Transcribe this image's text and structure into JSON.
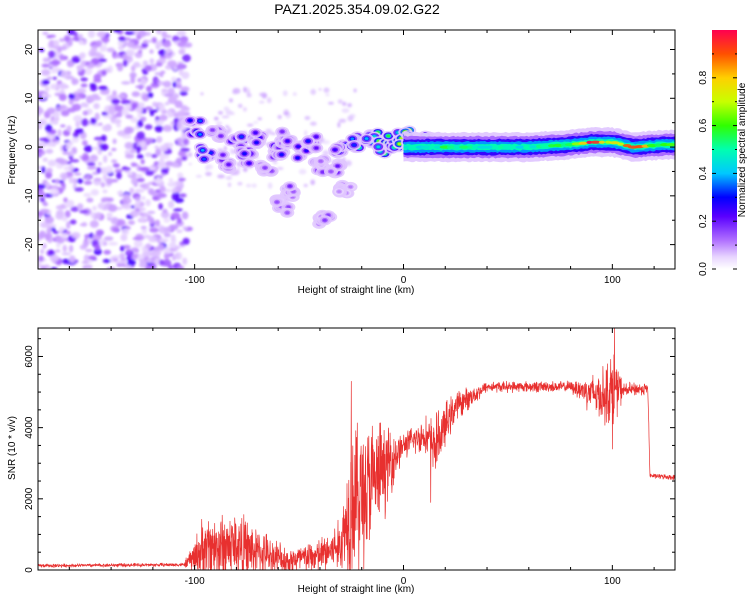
{
  "title": "PAZ1.2025.354.09.02.G22",
  "colors": {
    "snr_line": "#e8302f",
    "axis": "#000000",
    "spectrogram_low": "#e8d5ff",
    "spectrogram_mid": "#7a1cf0"
  },
  "chart_data": [
    {
      "type": "heatmap",
      "name": "spectrogram",
      "title": "PAZ1.2025.354.09.02.G22",
      "xlabel": "Height of straight line (km)",
      "ylabel": "Frequency (Hz)",
      "xlim": [
        -175,
        130
      ],
      "ylim": [
        -25,
        24
      ],
      "xticks": [
        -100,
        0,
        100
      ],
      "xtick_labels": [
        "-100",
        "0",
        "100"
      ],
      "yticks": [
        -20,
        -10,
        0,
        10,
        20
      ],
      "ytick_labels": [
        "-20",
        "-10",
        "0",
        "10",
        "20"
      ],
      "colorbar": {
        "label": "Normalized spectral amplitude",
        "range": [
          0,
          1
        ],
        "ticks": [
          0.0,
          0.2,
          0.4,
          0.6,
          0.8
        ],
        "tick_labels": [
          "0.0",
          "0.2",
          "0.4",
          "0.6",
          "0.8"
        ]
      },
      "noise_region_km": [
        -175,
        -103
      ],
      "main_ridge_freq_hz": 0,
      "blobs": [
        {
          "x": -100,
          "y": 4,
          "v": 0.35
        },
        {
          "x": -95,
          "y": -1,
          "v": 0.4
        },
        {
          "x": -90,
          "y": 3,
          "v": 0.25
        },
        {
          "x": -86,
          "y": -3,
          "v": 0.3
        },
        {
          "x": -80,
          "y": 1,
          "v": 0.35
        },
        {
          "x": -75,
          "y": -2,
          "v": 0.3
        },
        {
          "x": -70,
          "y": 2,
          "v": 0.28
        },
        {
          "x": -66,
          "y": -5,
          "v": 0.22
        },
        {
          "x": -60,
          "y": -1,
          "v": 0.3
        },
        {
          "x": -56,
          "y": 2,
          "v": 0.25
        },
        {
          "x": -55,
          "y": -9,
          "v": 0.18
        },
        {
          "x": -58,
          "y": -12,
          "v": 0.16
        },
        {
          "x": -48,
          "y": -1,
          "v": 0.3
        },
        {
          "x": -44,
          "y": 1,
          "v": 0.3
        },
        {
          "x": -40,
          "y": -4,
          "v": 0.2
        },
        {
          "x": -38,
          "y": -15,
          "v": 0.18
        },
        {
          "x": -33,
          "y": -4,
          "v": 0.2
        },
        {
          "x": -30,
          "y": 0,
          "v": 0.35
        },
        {
          "x": -28,
          "y": -8,
          "v": 0.16
        },
        {
          "x": -22,
          "y": 1,
          "v": 0.5
        },
        {
          "x": -15,
          "y": 2,
          "v": 0.6
        },
        {
          "x": -10,
          "y": 0,
          "v": 0.75
        },
        {
          "x": -5,
          "y": 1,
          "v": 0.65
        },
        {
          "x": 0,
          "y": 2,
          "v": 0.75
        },
        {
          "x": 5,
          "y": 0,
          "v": 0.8
        },
        {
          "x": 10,
          "y": 1,
          "v": 0.85
        },
        {
          "x": 18,
          "y": 0,
          "v": 0.95
        },
        {
          "x": 25,
          "y": 0,
          "v": 0.9
        }
      ],
      "ridge": [
        {
          "x": 0,
          "y": 0,
          "v": 0.45
        },
        {
          "x": 20,
          "y": 0,
          "v": 0.55
        },
        {
          "x": 40,
          "y": 0,
          "v": 0.5
        },
        {
          "x": 60,
          "y": 0,
          "v": 0.5
        },
        {
          "x": 80,
          "y": 0.5,
          "v": 0.6
        },
        {
          "x": 90,
          "y": 1,
          "v": 0.95
        },
        {
          "x": 100,
          "y": 1,
          "v": 0.7
        },
        {
          "x": 110,
          "y": 0,
          "v": 0.95
        },
        {
          "x": 125,
          "y": 0.5,
          "v": 0.6
        }
      ]
    },
    {
      "type": "line",
      "name": "snr",
      "xlabel": "Height of straight line (km)",
      "ylabel": "SNR (10 * v/v)",
      "xlim": [
        -175,
        130
      ],
      "ylim": [
        0,
        6800
      ],
      "xticks": [
        -100,
        0,
        100
      ],
      "xtick_labels": [
        "-100",
        "0",
        "100"
      ],
      "yticks": [
        0,
        2000,
        4000,
        6000
      ],
      "ytick_labels": [
        "0",
        "2000",
        "4000",
        "6000"
      ],
      "envelope": [
        {
          "x": -175,
          "base": 120,
          "amp": 60
        },
        {
          "x": -105,
          "base": 150,
          "amp": 60
        },
        {
          "x": -95,
          "base": 600,
          "amp": 1200
        },
        {
          "x": -80,
          "base": 700,
          "amp": 1200
        },
        {
          "x": -70,
          "base": 500,
          "amp": 800
        },
        {
          "x": -55,
          "base": 250,
          "amp": 500
        },
        {
          "x": -40,
          "base": 400,
          "amp": 600
        },
        {
          "x": -30,
          "base": 700,
          "amp": 900
        },
        {
          "x": -25,
          "base": 2000,
          "amp": 2800
        },
        {
          "x": -18,
          "base": 2200,
          "amp": 2500
        },
        {
          "x": -10,
          "base": 2800,
          "amp": 1600
        },
        {
          "x": 0,
          "base": 3500,
          "amp": 400
        },
        {
          "x": 10,
          "base": 3800,
          "amp": 600
        },
        {
          "x": 15,
          "base": 3500,
          "amp": 1000
        },
        {
          "x": 25,
          "base": 4600,
          "amp": 500
        },
        {
          "x": 40,
          "base": 5150,
          "amp": 180
        },
        {
          "x": 80,
          "base": 5150,
          "amp": 180
        },
        {
          "x": 95,
          "base": 4900,
          "amp": 900
        },
        {
          "x": 101,
          "base": 5100,
          "amp": 1300
        },
        {
          "x": 105,
          "base": 5050,
          "amp": 250
        },
        {
          "x": 117,
          "base": 5100,
          "amp": 200
        },
        {
          "x": 118,
          "base": 2650,
          "amp": 80
        },
        {
          "x": 130,
          "base": 2600,
          "amp": 80
        }
      ],
      "spikes": [
        {
          "x": 101,
          "y": 6800
        },
        {
          "x": 100,
          "y": 3400
        },
        {
          "x": 13,
          "y": 1900
        },
        {
          "x": -25,
          "y": 5300
        }
      ]
    }
  ]
}
